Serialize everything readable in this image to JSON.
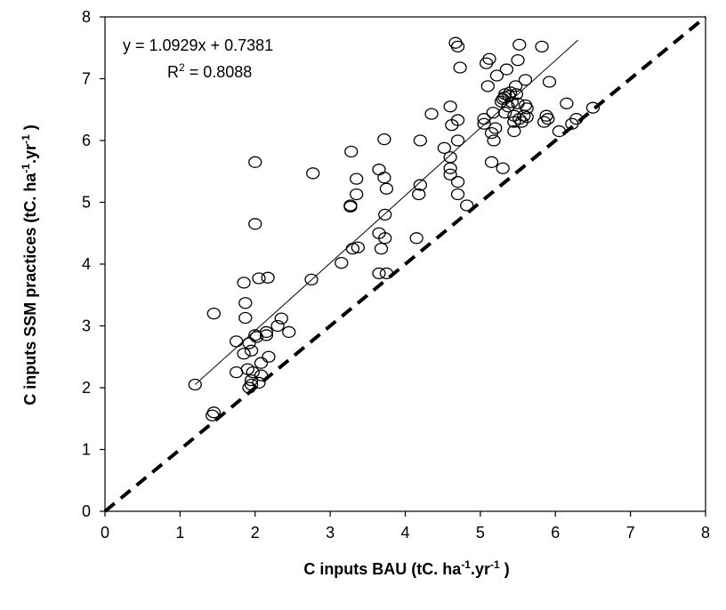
{
  "chart_data": {
    "type": "scatter",
    "title": "",
    "xlabel": {
      "main": "C inputs BAU (tC. ha",
      "sup1": "-1",
      "mid": ".yr",
      "sup2": "-1",
      "end": " )"
    },
    "ylabel": {
      "main": "C inputs SSM practices (tC. ha",
      "sup1": "-1",
      "mid": ".yr",
      "sup2": "-1",
      "end": " )"
    },
    "xlim": [
      0,
      8
    ],
    "ylim": [
      0,
      8
    ],
    "xticks": [
      "0",
      "1",
      "2",
      "3",
      "4",
      "5",
      "6",
      "7",
      "8"
    ],
    "yticks": [
      "0",
      "1",
      "2",
      "3",
      "4",
      "5",
      "6",
      "7",
      "8"
    ],
    "grid": false,
    "legend": "none",
    "annotations": {
      "equation": "y = 1.0929x + 0.7381",
      "r2_prefix": "R",
      "r2_sup": "2",
      "r2_value": " = 0.8088"
    },
    "trendline": {
      "slope": 1.0929,
      "intercept": 0.7381,
      "x_range": [
        1.2,
        6.3
      ]
    },
    "reference_line": {
      "type": "1:1",
      "style": "dashed",
      "x_range": [
        0,
        8
      ]
    },
    "series": [
      {
        "marker": "open-circle",
        "points": [
          [
            1.2,
            2.05
          ],
          [
            1.43,
            1.55
          ],
          [
            1.45,
            1.6
          ],
          [
            1.45,
            3.2
          ],
          [
            1.75,
            2.75
          ],
          [
            1.75,
            2.25
          ],
          [
            1.85,
            2.55
          ],
          [
            1.85,
            3.7
          ],
          [
            1.87,
            3.37
          ],
          [
            1.87,
            3.13
          ],
          [
            1.9,
            2.3
          ],
          [
            1.92,
            2.72
          ],
          [
            1.92,
            2.0
          ],
          [
            1.95,
            2.6
          ],
          [
            1.95,
            2.12
          ],
          [
            1.95,
            2.05
          ],
          [
            1.97,
            2.25
          ],
          [
            2.0,
            5.65
          ],
          [
            2.0,
            4.65
          ],
          [
            2.0,
            2.85
          ],
          [
            2.02,
            2.82
          ],
          [
            2.05,
            2.08
          ],
          [
            2.08,
            2.2
          ],
          [
            2.05,
            3.77
          ],
          [
            2.08,
            2.4
          ],
          [
            2.15,
            2.85
          ],
          [
            2.15,
            2.9
          ],
          [
            2.17,
            3.78
          ],
          [
            2.18,
            2.5
          ],
          [
            2.3,
            3.0
          ],
          [
            2.35,
            3.12
          ],
          [
            2.45,
            2.9
          ],
          [
            2.75,
            3.75
          ],
          [
            2.77,
            5.47
          ],
          [
            3.15,
            4.02
          ],
          [
            3.27,
            4.93
          ],
          [
            3.27,
            4.95
          ],
          [
            3.28,
            5.82
          ],
          [
            3.3,
            4.25
          ],
          [
            3.35,
            5.38
          ],
          [
            3.35,
            5.13
          ],
          [
            3.37,
            4.27
          ],
          [
            3.65,
            3.85
          ],
          [
            3.65,
            4.5
          ],
          [
            3.65,
            5.53
          ],
          [
            3.68,
            4.25
          ],
          [
            3.72,
            5.4
          ],
          [
            3.72,
            6.02
          ],
          [
            3.73,
            4.8
          ],
          [
            3.73,
            4.42
          ],
          [
            3.75,
            5.22
          ],
          [
            3.75,
            3.85
          ],
          [
            4.15,
            4.42
          ],
          [
            4.18,
            5.13
          ],
          [
            4.2,
            5.28
          ],
          [
            4.2,
            6.0
          ],
          [
            4.35,
            6.43
          ],
          [
            4.52,
            5.88
          ],
          [
            4.6,
            5.73
          ],
          [
            4.6,
            5.55
          ],
          [
            4.6,
            5.45
          ],
          [
            4.6,
            6.55
          ],
          [
            4.62,
            6.25
          ],
          [
            4.67,
            7.58
          ],
          [
            4.7,
            7.52
          ],
          [
            4.7,
            6.0
          ],
          [
            4.7,
            6.33
          ],
          [
            4.7,
            5.33
          ],
          [
            4.7,
            5.13
          ],
          [
            4.73,
            7.18
          ],
          [
            4.82,
            4.95
          ],
          [
            5.05,
            6.35
          ],
          [
            5.05,
            6.27
          ],
          [
            5.08,
            7.25
          ],
          [
            5.1,
            6.88
          ],
          [
            5.12,
            7.32
          ],
          [
            5.15,
            5.65
          ],
          [
            5.15,
            6.12
          ],
          [
            5.17,
            6.45
          ],
          [
            5.18,
            6.0
          ],
          [
            5.2,
            6.2
          ],
          [
            5.22,
            7.05
          ],
          [
            5.28,
            6.63
          ],
          [
            5.3,
            6.67
          ],
          [
            5.3,
            5.55
          ],
          [
            5.32,
            6.7
          ],
          [
            5.33,
            6.75
          ],
          [
            5.33,
            6.45
          ],
          [
            5.35,
            7.15
          ],
          [
            5.37,
            6.55
          ],
          [
            5.38,
            6.72
          ],
          [
            5.4,
            6.78
          ],
          [
            5.42,
            6.62
          ],
          [
            5.45,
            6.15
          ],
          [
            5.45,
            6.4
          ],
          [
            5.45,
            6.3
          ],
          [
            5.47,
            6.88
          ],
          [
            5.48,
            6.75
          ],
          [
            5.5,
            7.3
          ],
          [
            5.5,
            6.6
          ],
          [
            5.52,
            7.55
          ],
          [
            5.52,
            6.35
          ],
          [
            5.55,
            6.3
          ],
          [
            5.58,
            6.4
          ],
          [
            5.6,
            6.98
          ],
          [
            5.6,
            6.57
          ],
          [
            5.62,
            6.52
          ],
          [
            5.62,
            6.38
          ],
          [
            5.82,
            7.52
          ],
          [
            5.85,
            6.3
          ],
          [
            5.88,
            6.4
          ],
          [
            5.9,
            6.35
          ],
          [
            5.92,
            6.95
          ],
          [
            6.05,
            6.15
          ],
          [
            6.15,
            6.6
          ],
          [
            6.22,
            6.27
          ],
          [
            6.28,
            6.35
          ],
          [
            6.5,
            6.53
          ]
        ]
      }
    ]
  }
}
